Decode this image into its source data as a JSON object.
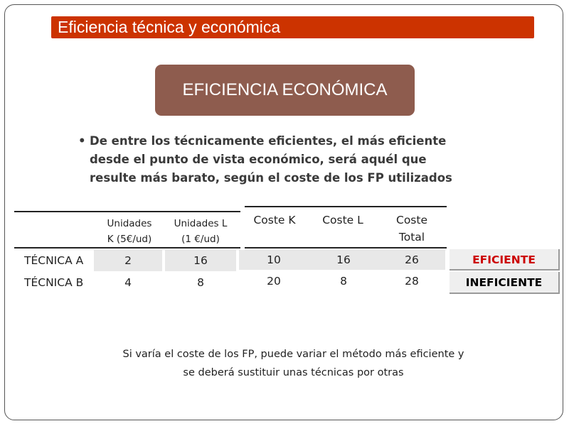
{
  "title": "Eficiencia técnica y económica",
  "section_title": "EFICIENCIA ECONÓMICA",
  "bullet_lines": [
    "De entre los técnicamente eficientes, el más eficiente",
    "desde el punto de vista económico, será aquél que",
    "resulte más barato, según el coste de los FP utilizados"
  ],
  "table": {
    "headers": {
      "units_k": [
        "Unidades",
        "K (5€/ud)"
      ],
      "units_l": [
        "Unidades L",
        "(1 €/ud)"
      ],
      "cost_k": "Coste K",
      "cost_l": "Coste L",
      "cost_total": [
        "Coste",
        "Total"
      ]
    },
    "rows": [
      {
        "label": "TÉCNICA A",
        "units_k": "2",
        "units_l": "16",
        "cost_k": "10",
        "cost_l": "16",
        "cost_total": "26",
        "result": "EFICIENTE"
      },
      {
        "label": "TÉCNICA B",
        "units_k": "4",
        "units_l": "8",
        "cost_k": "20",
        "cost_l": "8",
        "cost_total": "28",
        "result": "INEFICIENTE"
      }
    ]
  },
  "note_lines": [
    "Si varía el coste de los FP, puede variar el método más eficiente y",
    "se deberá sustituir unas técnicas por otras"
  ],
  "colors": {
    "title_bar": "#cc3300",
    "section_box": "#8e5c4e",
    "efficient_text": "#cc0000",
    "inefficient_text": "#000000"
  }
}
